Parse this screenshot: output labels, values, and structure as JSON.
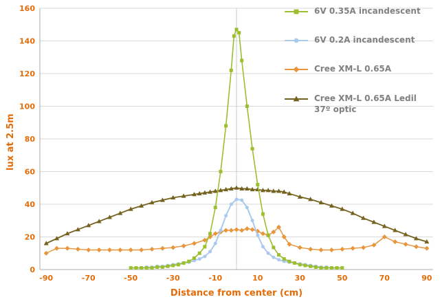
{
  "chart_data": {
    "type": "line",
    "title": "",
    "xlabel": "Distance from center (cm)",
    "ylabel": "lux at 2.5m",
    "xlim": [
      -93,
      93
    ],
    "ylim": [
      0,
      160
    ],
    "xticks": [
      -90,
      -70,
      -50,
      -30,
      -10,
      10,
      30,
      50,
      70,
      90
    ],
    "yticks": [
      0,
      20,
      40,
      60,
      80,
      100,
      120,
      140,
      160
    ],
    "grid": "horizontal",
    "center_line_x": 0,
    "legend_position": "top-right",
    "series": [
      {
        "name": "6V 0.35A incandescent",
        "color": "#9CBE2F",
        "marker": "square",
        "line_width": 1.6,
        "points": [
          [
            -50,
            1
          ],
          [
            -47.5,
            1
          ],
          [
            -45,
            1
          ],
          [
            -42.5,
            1
          ],
          [
            -40,
            1
          ],
          [
            -37.5,
            1.5
          ],
          [
            -35,
            1.5
          ],
          [
            -32.5,
            2
          ],
          [
            -30,
            2.5
          ],
          [
            -27.5,
            3
          ],
          [
            -25,
            4
          ],
          [
            -22.5,
            5
          ],
          [
            -20,
            7
          ],
          [
            -17.5,
            10
          ],
          [
            -15,
            14
          ],
          [
            -12.5,
            22
          ],
          [
            -10,
            38
          ],
          [
            -7.5,
            60
          ],
          [
            -5,
            88
          ],
          [
            -2.5,
            122
          ],
          [
            -1.2,
            143
          ],
          [
            0,
            147
          ],
          [
            1.2,
            145
          ],
          [
            2.5,
            128
          ],
          [
            5,
            100
          ],
          [
            7.5,
            74
          ],
          [
            10,
            52
          ],
          [
            12.5,
            34
          ],
          [
            15,
            21
          ],
          [
            17.5,
            13.5
          ],
          [
            20,
            9
          ],
          [
            22.5,
            6.5
          ],
          [
            25,
            5
          ],
          [
            27.5,
            4
          ],
          [
            30,
            3
          ],
          [
            32.5,
            2.5
          ],
          [
            35,
            2
          ],
          [
            37.5,
            1.5
          ],
          [
            40,
            1
          ],
          [
            42.5,
            1
          ],
          [
            45,
            1
          ],
          [
            47.5,
            1
          ],
          [
            50,
            1
          ]
        ]
      },
      {
        "name": "6V 0.2A incandescent",
        "color": "#A9C9EE",
        "marker": "circle",
        "line_width": 2,
        "points": [
          [
            -50,
            1
          ],
          [
            -47.5,
            1
          ],
          [
            -45,
            1
          ],
          [
            -42.5,
            1.5
          ],
          [
            -40,
            1.5
          ],
          [
            -37.5,
            2
          ],
          [
            -35,
            2
          ],
          [
            -32.5,
            2.5
          ],
          [
            -30,
            3
          ],
          [
            -27.5,
            3.5
          ],
          [
            -25,
            4
          ],
          [
            -22.5,
            4.5
          ],
          [
            -20,
            5.5
          ],
          [
            -17.5,
            6.5
          ],
          [
            -15,
            8
          ],
          [
            -12.5,
            11
          ],
          [
            -10,
            16
          ],
          [
            -7.5,
            24
          ],
          [
            -5,
            33
          ],
          [
            -2.5,
            40
          ],
          [
            0,
            43
          ],
          [
            2.5,
            42.5
          ],
          [
            5,
            38
          ],
          [
            7.5,
            30
          ],
          [
            10,
            21
          ],
          [
            12.5,
            14
          ],
          [
            15,
            10
          ],
          [
            17.5,
            7.5
          ],
          [
            20,
            6
          ],
          [
            22.5,
            5
          ],
          [
            25,
            4.5
          ],
          [
            27.5,
            4
          ],
          [
            30,
            3.5
          ],
          [
            32.5,
            3
          ],
          [
            35,
            2.5
          ],
          [
            37.5,
            2
          ],
          [
            40,
            1.5
          ],
          [
            42.5,
            1.5
          ],
          [
            45,
            1
          ],
          [
            47.5,
            1
          ],
          [
            50,
            1
          ]
        ]
      },
      {
        "name": "Cree XM-L 0.65A",
        "color": "#E8953C",
        "marker": "diamond",
        "line_width": 1.5,
        "points": [
          [
            -90,
            10
          ],
          [
            -85,
            13
          ],
          [
            -80,
            13
          ],
          [
            -75,
            12.5
          ],
          [
            -70,
            12
          ],
          [
            -65,
            12
          ],
          [
            -60,
            12
          ],
          [
            -55,
            12
          ],
          [
            -50,
            12
          ],
          [
            -45,
            12
          ],
          [
            -40,
            12.5
          ],
          [
            -35,
            13
          ],
          [
            -30,
            13.5
          ],
          [
            -25,
            14.5
          ],
          [
            -20,
            16
          ],
          [
            -15,
            18
          ],
          [
            -12.5,
            20
          ],
          [
            -10,
            22
          ],
          [
            -7.5,
            23
          ],
          [
            -5,
            24
          ],
          [
            -2.5,
            24
          ],
          [
            0,
            24.5
          ],
          [
            2.5,
            24
          ],
          [
            5,
            25
          ],
          [
            7.5,
            24.5
          ],
          [
            10,
            23.5
          ],
          [
            12.5,
            22
          ],
          [
            15,
            21
          ],
          [
            17.5,
            23
          ],
          [
            20,
            26
          ],
          [
            22.5,
            20
          ],
          [
            25,
            15.5
          ],
          [
            30,
            13.5
          ],
          [
            35,
            12.5
          ],
          [
            40,
            12
          ],
          [
            45,
            12
          ],
          [
            50,
            12.5
          ],
          [
            55,
            13
          ],
          [
            60,
            13.5
          ],
          [
            65,
            15
          ],
          [
            70,
            20
          ],
          [
            75,
            17
          ],
          [
            80,
            15.5
          ],
          [
            85,
            14
          ],
          [
            90,
            13
          ]
        ]
      },
      {
        "name": "Cree XM-L 0.65A Ledil 37º optic",
        "color": "#75621F",
        "marker": "triangle",
        "line_width": 1.8,
        "points": [
          [
            -90,
            16
          ],
          [
            -85,
            19
          ],
          [
            -80,
            22
          ],
          [
            -75,
            24.5
          ],
          [
            -70,
            27
          ],
          [
            -65,
            29.5
          ],
          [
            -60,
            32
          ],
          [
            -55,
            34.5
          ],
          [
            -50,
            37
          ],
          [
            -45,
            39
          ],
          [
            -40,
            41
          ],
          [
            -35,
            42.5
          ],
          [
            -30,
            44
          ],
          [
            -25,
            45
          ],
          [
            -20,
            46
          ],
          [
            -17.5,
            46.5
          ],
          [
            -15,
            47
          ],
          [
            -12.5,
            47.5
          ],
          [
            -10,
            48
          ],
          [
            -7.5,
            48.5
          ],
          [
            -5,
            49
          ],
          [
            -2.5,
            49.5
          ],
          [
            0,
            50
          ],
          [
            2.5,
            49.5
          ],
          [
            5,
            49.5
          ],
          [
            7.5,
            49
          ],
          [
            10,
            49
          ],
          [
            12.5,
            48.5
          ],
          [
            15,
            48.5
          ],
          [
            17.5,
            48
          ],
          [
            20,
            48
          ],
          [
            22.5,
            47.5
          ],
          [
            25,
            46.5
          ],
          [
            30,
            44.5
          ],
          [
            35,
            43
          ],
          [
            40,
            41
          ],
          [
            45,
            39
          ],
          [
            50,
            37
          ],
          [
            55,
            34.5
          ],
          [
            60,
            31.5
          ],
          [
            65,
            29
          ],
          [
            70,
            26.5
          ],
          [
            75,
            24
          ],
          [
            80,
            21.5
          ],
          [
            85,
            19
          ],
          [
            90,
            17
          ]
        ]
      }
    ]
  },
  "styles": {
    "axis_label_color": "#E36C09",
    "legend_text_color": "#808080",
    "grid_color": "#DADADA",
    "axis_line_color": "#ABABAB",
    "center_line_color": "#C9C9C9",
    "background": "#FFFFFF"
  }
}
